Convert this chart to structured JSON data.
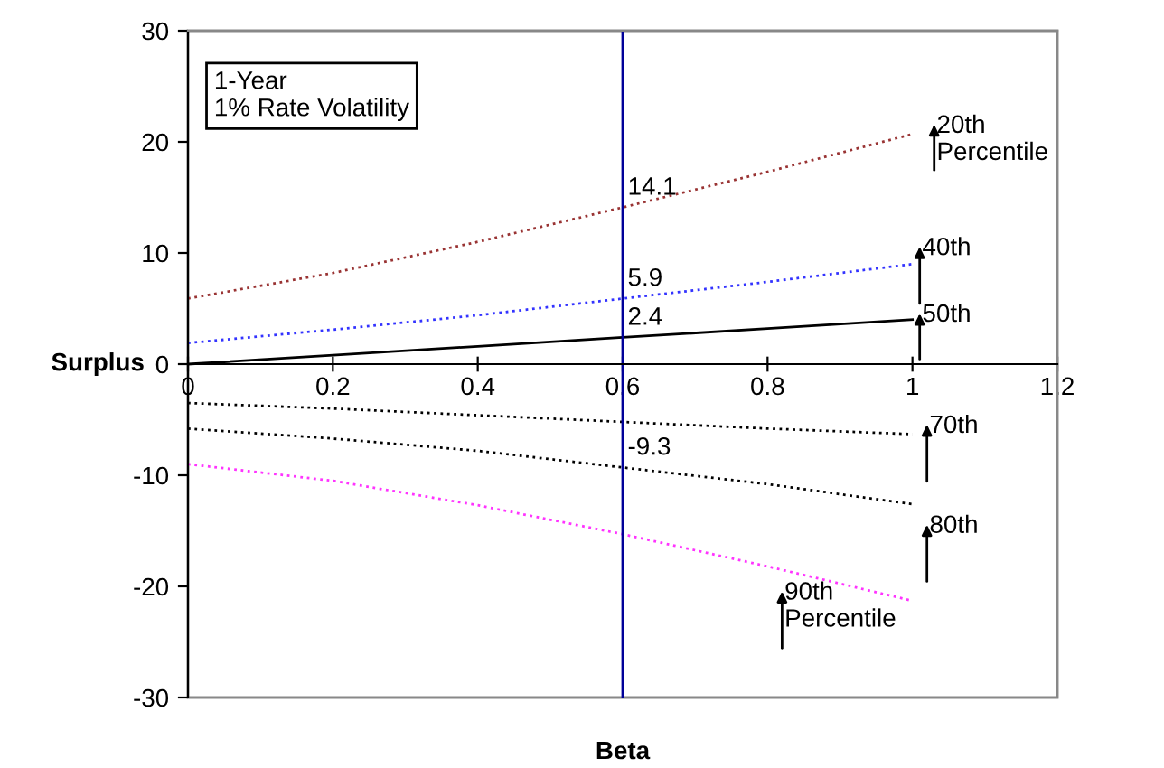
{
  "chart_data": {
    "type": "line",
    "xlabel": "Beta",
    "ylabel": "Surplus",
    "x": [
      0,
      0.2,
      0.4,
      0.6,
      0.8,
      1
    ],
    "series": [
      {
        "color": "#993333",
        "line_style": "dotted",
        "values": [
          5.9,
          8.2,
          11.0,
          14.1,
          17.3,
          20.7
        ],
        "value_labels": [
          null,
          null,
          null,
          "14.1",
          null,
          null
        ]
      },
      {
        "color": "#3333ff",
        "line_style": "dotted",
        "values": [
          1.9,
          3.1,
          4.4,
          5.9,
          7.4,
          9.0
        ],
        "value_labels": [
          null,
          null,
          null,
          "5.9",
          null,
          null
        ]
      },
      {
        "color": "#000000",
        "line_style": "solid",
        "values": [
          0,
          0.8,
          1.6,
          2.4,
          3.2,
          4.0
        ],
        "value_labels": [
          null,
          null,
          null,
          "2.4",
          null,
          null
        ]
      },
      {
        "color": "#000000",
        "line_style": "dotted",
        "values": [
          -3.5,
          -4.0,
          -4.6,
          -5.2,
          -5.8,
          -6.3
        ]
      },
      {
        "color": "#000000",
        "line_style": "dotted",
        "values": [
          -5.8,
          -6.7,
          -7.8,
          -9.3,
          -10.8,
          -12.6
        ],
        "value_labels": [
          null,
          null,
          null,
          "-9.3",
          null,
          null
        ]
      },
      {
        "color": "#ff33ff",
        "line_style": "dotted",
        "values": [
          -9.0,
          -10.5,
          -12.7,
          -15.3,
          -18.2,
          -21.3
        ]
      }
    ],
    "xlim": [
      0,
      1.2
    ],
    "xticks": [
      0,
      0.2,
      0.4,
      0.6,
      0.8,
      1,
      1.2
    ],
    "ylim": [
      -30,
      30
    ],
    "yticks": [
      -30,
      -20,
      -10,
      0,
      10,
      20,
      30
    ],
    "ref_lines": [
      {
        "axis": "x",
        "value": 0.6,
        "color": "#000099"
      }
    ],
    "annotations": [
      "1-Year\n1% Rate Volatility",
      "20th\nPercentile",
      "40th",
      "50th",
      "70th",
      "80th",
      "90th\nPercentile"
    ],
    "grid": false,
    "legend": false,
    "marker": "none"
  }
}
